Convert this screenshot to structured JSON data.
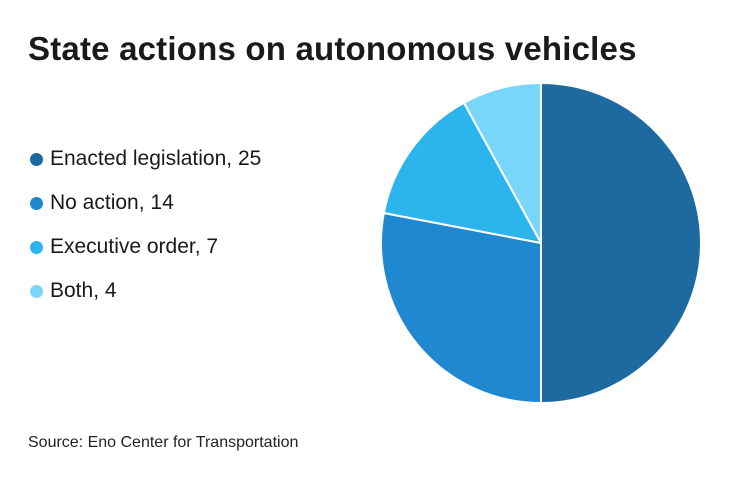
{
  "title": "State actions on autonomous vehicles",
  "source": "Source: Eno Center for Transportation",
  "chart_data": {
    "type": "pie",
    "title": "State actions on autonomous vehicles",
    "slices": [
      {
        "label": "Enacted legislation, 25",
        "name": "Enacted legislation",
        "value": 25,
        "color": "#1c6aa0"
      },
      {
        "label": "No action, 14",
        "name": "No action",
        "value": 14,
        "color": "#2088cf"
      },
      {
        "label": "Executive order, 7",
        "name": "Executive order",
        "value": 7,
        "color": "#2bb5ec"
      },
      {
        "label": "Both, 4",
        "name": "Both",
        "value": 4,
        "color": "#79d6fb"
      }
    ],
    "legend_position": "left"
  }
}
